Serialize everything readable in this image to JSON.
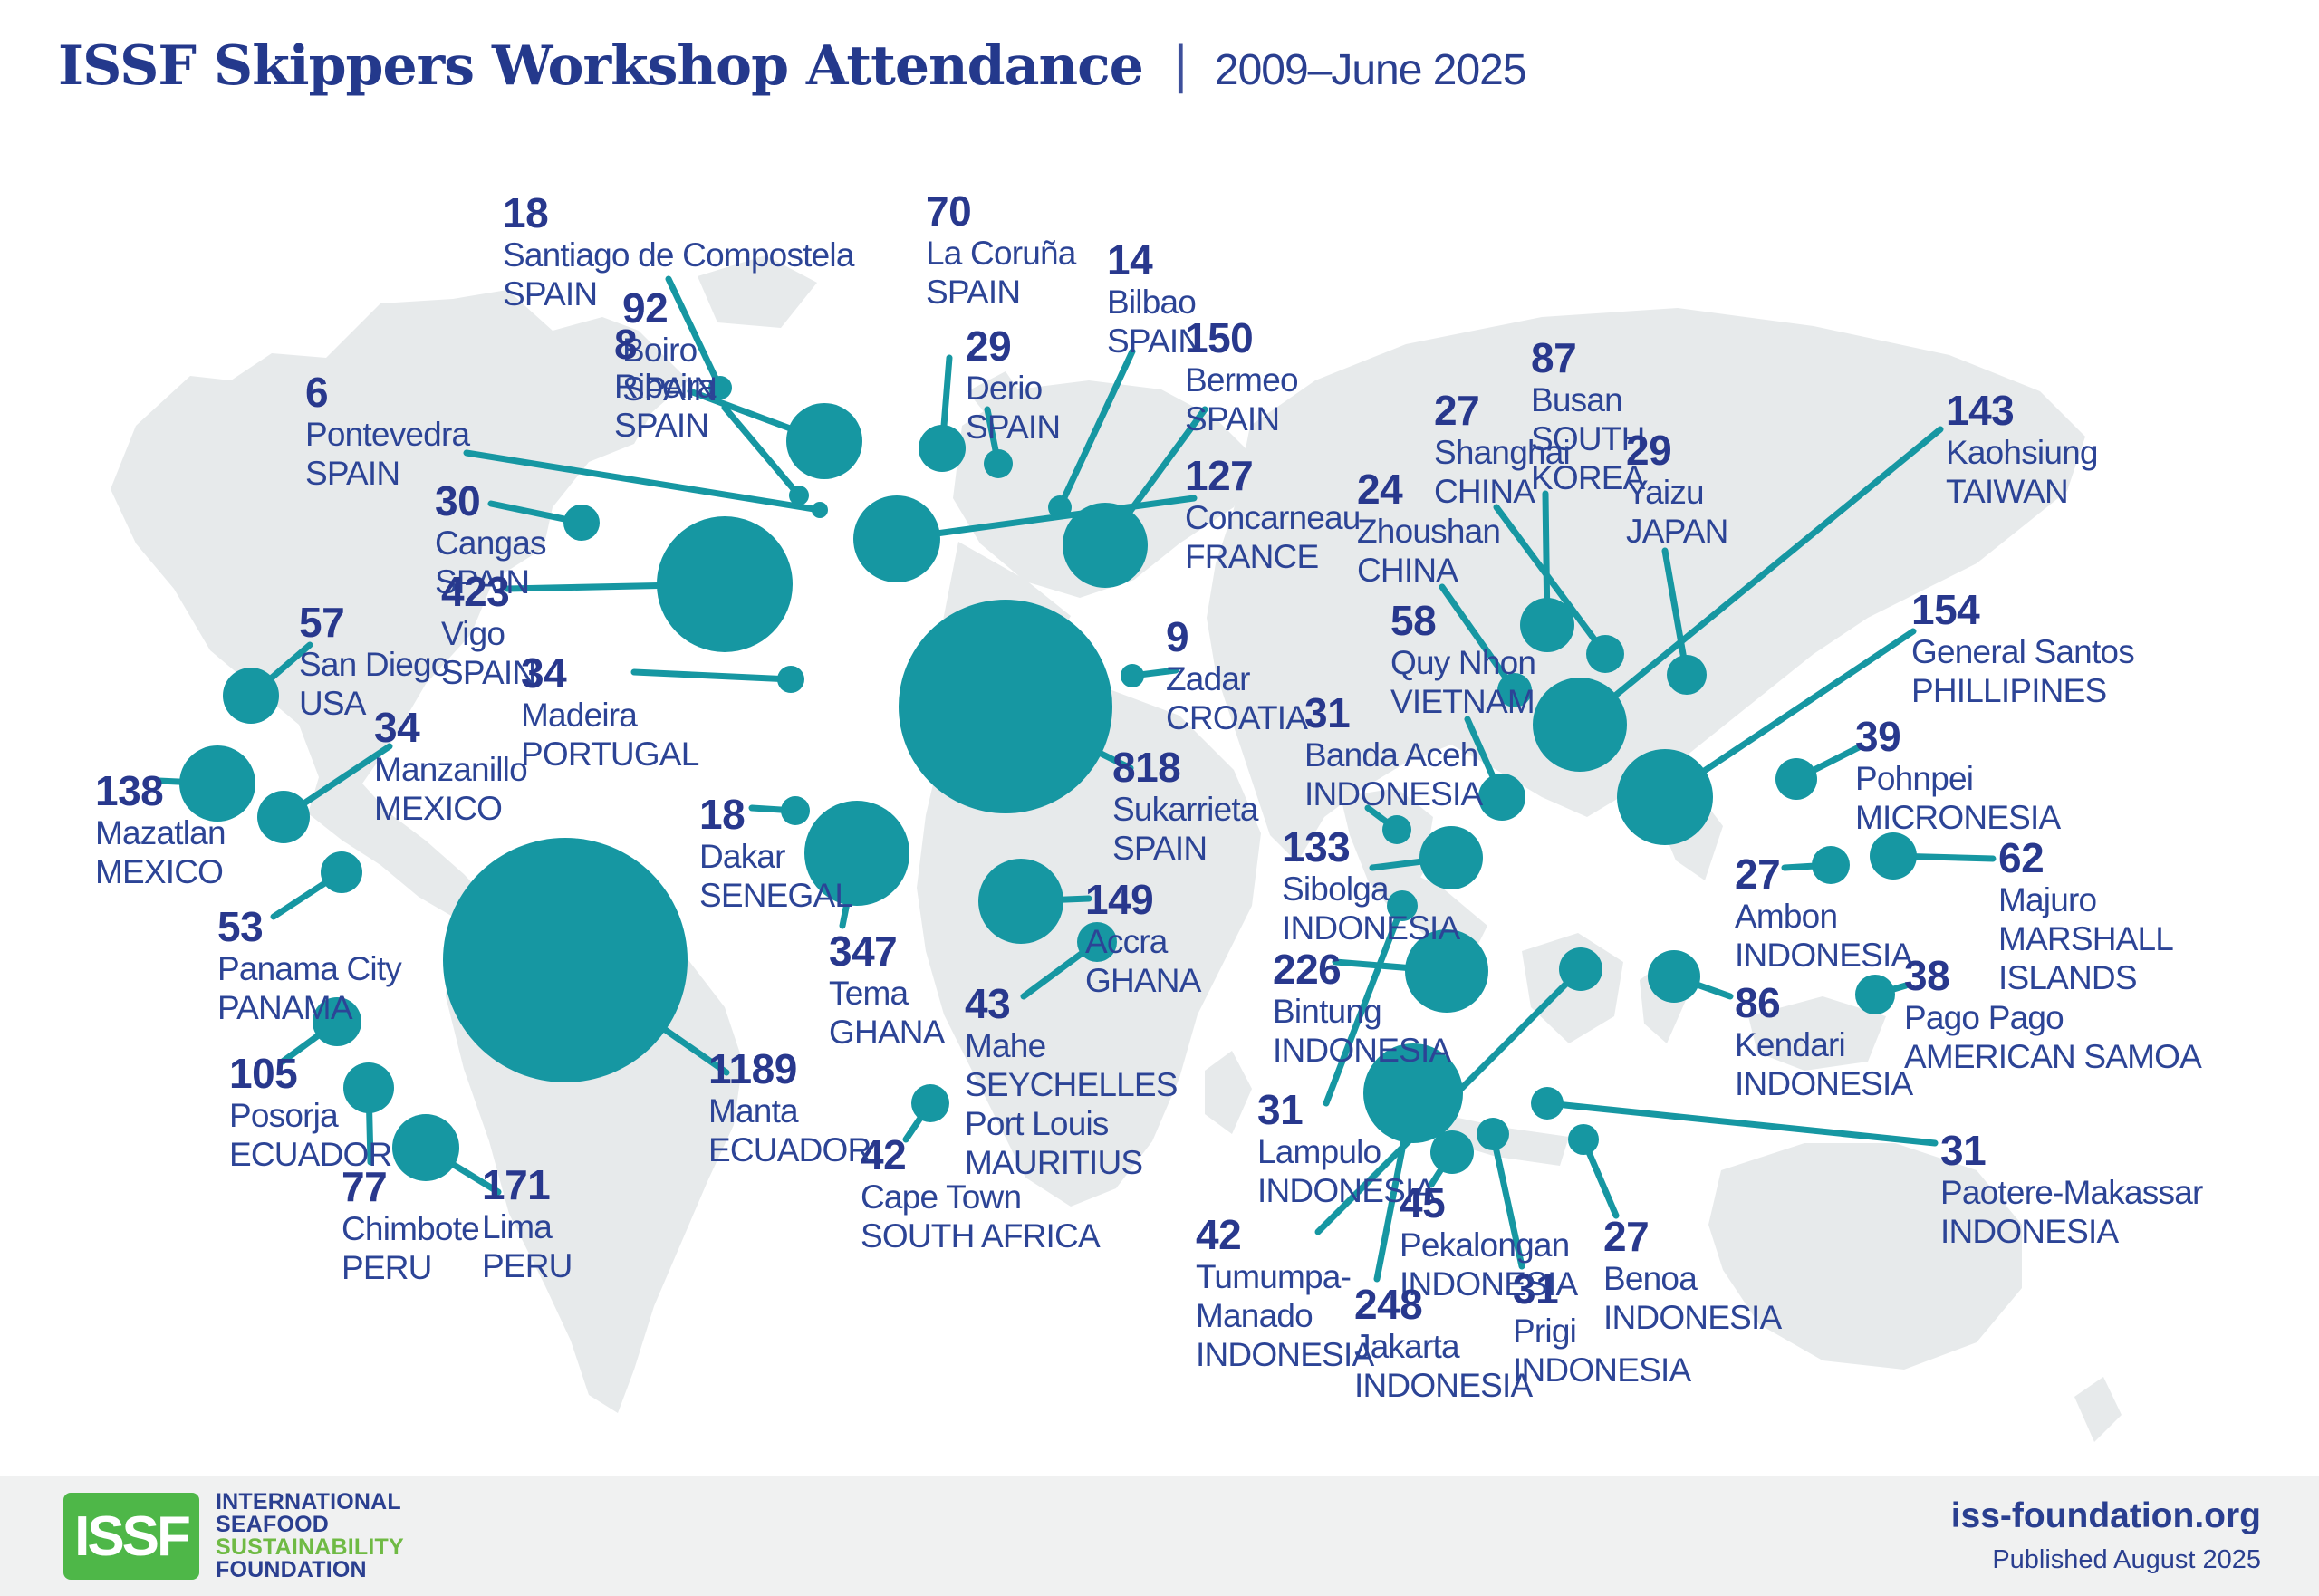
{
  "title": "ISSF Skippers Workshop Attendance",
  "separator": "|",
  "subtitle": "2009–June 2025",
  "footer": {
    "logo_text": "ISSF",
    "logo_lines": [
      "INTERNATIONAL",
      "SEAFOOD",
      "SUSTAINABILITY",
      "FOUNDATION"
    ],
    "website": "iss-foundation.org",
    "published": "Published August 2025"
  },
  "colors": {
    "bubble_teal": "#1697A2",
    "number_navy": "#28388D",
    "name_navy": "#2C4496",
    "land_gray": "#E7EAEB",
    "footer_gray": "#F0F1F1",
    "logo_green": "#4EB748",
    "logo_green_light": "#6FBA44"
  },
  "chart_data": {
    "type": "bubble_map",
    "title": "ISSF Skippers Workshop Attendance",
    "period": "2009–June 2025",
    "legend": "bubble area proportional to attendance",
    "locations": [
      {
        "v": "18",
        "lines": [
          "Santiago de Compostela",
          "SPAIN"
        ],
        "b": [
          795,
          428,
          13
        ],
        "l": [
          555,
          210
        ],
        "e": [
          738,
          308
        ]
      },
      {
        "v": "70",
        "lines": [
          "La Coruña",
          "SPAIN"
        ],
        "b": [
          1040,
          495,
          26
        ],
        "l": [
          1022,
          208
        ],
        "e": [
          1048,
          395
        ]
      },
      {
        "v": "14",
        "lines": [
          "Bilbao",
          "SPAIN"
        ],
        "b": [
          1170,
          560,
          13
        ],
        "l": [
          1222,
          262
        ],
        "e": [
          1250,
          388
        ]
      },
      {
        "v": "92",
        "lines": [
          "Boiro",
          "SPAIN"
        ],
        "b": [
          910,
          487,
          42
        ],
        "l": [
          687,
          315
        ],
        "e": [
          762,
          432
        ]
      },
      {
        "v": "8",
        "lines": [
          "Ribeira",
          "SPAIN"
        ],
        "b": [
          882,
          547,
          11
        ],
        "l": [
          678,
          355
        ],
        "e": [
          800,
          450
        ]
      },
      {
        "v": "6",
        "lines": [
          "Pontevedra",
          "SPAIN"
        ],
        "b": [
          905,
          563,
          9
        ],
        "l": [
          337,
          408
        ],
        "e": [
          515,
          500
        ]
      },
      {
        "v": "30",
        "lines": [
          "Cangas",
          "SPAIN"
        ],
        "b": [
          642,
          577,
          20
        ],
        "l": [
          480,
          528
        ],
        "e": [
          542,
          556
        ]
      },
      {
        "v": "423",
        "lines": [
          "Vigo",
          "SPAIN"
        ],
        "b": [
          800,
          645,
          75
        ],
        "l": [
          487,
          628
        ],
        "e": [
          560,
          650
        ]
      },
      {
        "v": "29",
        "lines": [
          "Derio",
          "SPAIN"
        ],
        "b": [
          1102,
          512,
          16
        ],
        "l": [
          1066,
          357
        ],
        "e": [
          1090,
          452
        ]
      },
      {
        "v": "150",
        "lines": [
          "Bermeo",
          "SPAIN"
        ],
        "b": [
          1220,
          602,
          47
        ],
        "l": [
          1308,
          348
        ],
        "e": [
          1330,
          452
        ]
      },
      {
        "v": "127",
        "lines": [
          "Concarneau",
          "FRANCE"
        ],
        "b": [
          990,
          595,
          48
        ],
        "l": [
          1308,
          500
        ],
        "e": [
          1318,
          550
        ]
      },
      {
        "v": "818",
        "lines": [
          "Sukarrieta",
          "SPAIN"
        ],
        "b": [
          1110,
          780,
          118
        ],
        "l": [
          1228,
          822
        ],
        "e": [
          1248,
          848
        ]
      },
      {
        "v": "9",
        "lines": [
          "Zadar",
          "CROATIA"
        ],
        "b": [
          1250,
          746,
          13
        ],
        "l": [
          1287,
          678
        ],
        "e": [
          1298,
          740
        ]
      },
      {
        "v": "34",
        "lines": [
          "Madeira",
          "PORTUGAL"
        ],
        "b": [
          873,
          750,
          15
        ],
        "l": [
          575,
          718
        ],
        "e": [
          700,
          742
        ]
      },
      {
        "v": "18",
        "lines": [
          "Dakar",
          "SENEGAL"
        ],
        "b": [
          878,
          895,
          16
        ],
        "l": [
          772,
          874
        ],
        "e": [
          830,
          892
        ]
      },
      {
        "v": "347",
        "lines": [
          "Tema",
          "GHANA"
        ],
        "b": [
          946,
          942,
          58
        ],
        "l": [
          915,
          1025
        ],
        "e": [
          930,
          1022
        ]
      },
      {
        "v": "149",
        "lines": [
          "Accra",
          "GHANA"
        ],
        "b": [
          1127,
          995,
          47
        ],
        "l": [
          1198,
          968
        ],
        "e": [
          1202,
          992
        ]
      },
      {
        "v": "43",
        "lines": [
          "Mahe",
          "SEYCHELLES",
          "Port Louis",
          "MAURITIUS"
        ],
        "b": [
          1211,
          1040,
          22
        ],
        "l": [
          1065,
          1083
        ],
        "e": [
          1130,
          1100
        ]
      },
      {
        "v": "42",
        "lines": [
          "Cape Town",
          "SOUTH AFRICA"
        ],
        "b": [
          1027,
          1218,
          21
        ],
        "l": [
          950,
          1250
        ],
        "e": [
          1000,
          1258
        ]
      },
      {
        "v": "57",
        "lines": [
          "San Diego",
          "USA"
        ],
        "b": [
          277,
          768,
          31
        ],
        "l": [
          330,
          662
        ],
        "e": [
          342,
          712
        ]
      },
      {
        "v": "138",
        "lines": [
          "Mazatlan",
          "MEXICO"
        ],
        "b": [
          240,
          865,
          42
        ],
        "l": [
          105,
          848
        ],
        "e": [
          175,
          862
        ]
      },
      {
        "v": "34",
        "lines": [
          "Manzanillo",
          "MEXICO"
        ],
        "b": [
          313,
          902,
          29
        ],
        "l": [
          413,
          778
        ],
        "e": [
          430,
          824
        ]
      },
      {
        "v": "53",
        "lines": [
          "Panama City",
          "PANAMA"
        ],
        "b": [
          377,
          963,
          23
        ],
        "l": [
          240,
          998
        ],
        "e": [
          302,
          1012
        ]
      },
      {
        "v": "105",
        "lines": [
          "Posorja",
          "ECUADOR"
        ],
        "b": [
          372,
          1128,
          27
        ],
        "l": [
          253,
          1160
        ],
        "e": [
          312,
          1172
        ]
      },
      {
        "v": "1189",
        "lines": [
          "Manta",
          "ECUADOR"
        ],
        "b": [
          624,
          1060,
          135
        ],
        "l": [
          782,
          1155
        ],
        "e": [
          802,
          1184
        ]
      },
      {
        "v": "77",
        "lines": [
          "Chimbote",
          "PERU"
        ],
        "b": [
          407,
          1201,
          28
        ],
        "l": [
          377,
          1285
        ],
        "e": [
          409,
          1283
        ]
      },
      {
        "v": "171",
        "lines": [
          "Lima",
          "PERU"
        ],
        "b": [
          470,
          1267,
          37
        ],
        "l": [
          532,
          1283
        ],
        "e": [
          550,
          1316
        ]
      },
      {
        "v": "27",
        "lines": [
          "Shanghai",
          "CHINA"
        ],
        "b": [
          1772,
          722,
          21
        ],
        "l": [
          1583,
          428
        ],
        "e": [
          1652,
          560
        ]
      },
      {
        "v": "24",
        "lines": [
          "Zhoushan",
          "CHINA"
        ],
        "b": [
          1672,
          762,
          19
        ],
        "l": [
          1498,
          515
        ],
        "e": [
          1592,
          648
        ]
      },
      {
        "v": "87",
        "lines": [
          "Busan",
          "SOUTH",
          "KOREA"
        ],
        "b": [
          1708,
          690,
          30
        ],
        "l": [
          1690,
          370
        ],
        "e": [
          1706,
          545
        ]
      },
      {
        "v": "29",
        "lines": [
          "Yaizu",
          "JAPAN"
        ],
        "b": [
          1862,
          745,
          22
        ],
        "l": [
          1795,
          472
        ],
        "e": [
          1838,
          608
        ]
      },
      {
        "v": "143",
        "lines": [
          "Kaohsiung",
          "TAIWAN"
        ],
        "b": [
          1744,
          800,
          52
        ],
        "l": [
          2148,
          428
        ],
        "e": [
          2142,
          474
        ]
      },
      {
        "v": "58",
        "lines": [
          "Quy Nhon",
          "VIETNAM"
        ],
        "b": [
          1658,
          880,
          26
        ],
        "l": [
          1535,
          660
        ],
        "e": [
          1620,
          794
        ]
      },
      {
        "v": "31",
        "lines": [
          "Banda Aceh",
          "INDONESIA"
        ],
        "b": [
          1542,
          916,
          16
        ],
        "l": [
          1440,
          762
        ],
        "e": [
          1510,
          892
        ]
      },
      {
        "v": "133",
        "lines": [
          "Sibolga",
          "INDONESIA"
        ],
        "b": [
          1602,
          947,
          35
        ],
        "l": [
          1415,
          910
        ],
        "e": [
          1515,
          958
        ]
      },
      {
        "v": "226",
        "lines": [
          "Bintung",
          "INDONESIA"
        ],
        "b": [
          1597,
          1072,
          46
        ],
        "l": [
          1405,
          1045
        ],
        "e": [
          1474,
          1062
        ]
      },
      {
        "v": "31",
        "lines": [
          "Lampulo",
          "INDONESIA"
        ],
        "b": [
          1548,
          1000,
          17
        ],
        "l": [
          1388,
          1200
        ],
        "e": [
          1464,
          1218
        ]
      },
      {
        "v": "154",
        "lines": [
          "General Santos",
          "PHILLIPINES"
        ],
        "b": [
          1838,
          880,
          53
        ],
        "l": [
          2110,
          648
        ],
        "e": [
          2112,
          697
        ]
      },
      {
        "v": "39",
        "lines": [
          "Pohnpei",
          "MICRONESIA"
        ],
        "b": [
          1983,
          860,
          23
        ],
        "l": [
          2048,
          788
        ],
        "e": [
          2054,
          824
        ]
      },
      {
        "v": "27",
        "lines": [
          "Ambon",
          "INDONESIA"
        ],
        "b": [
          2021,
          955,
          21
        ],
        "l": [
          1915,
          940
        ],
        "e": [
          1970,
          958
        ]
      },
      {
        "v": "62",
        "lines": [
          "Majuro",
          "MARSHALL",
          "ISLANDS"
        ],
        "b": [
          2090,
          945,
          26
        ],
        "l": [
          2206,
          922
        ],
        "e": [
          2200,
          948
        ]
      },
      {
        "v": "86",
        "lines": [
          "Kendari",
          "INDONESIA"
        ],
        "b": [
          1848,
          1078,
          29
        ],
        "l": [
          1915,
          1082
        ],
        "e": [
          1910,
          1100
        ]
      },
      {
        "v": "38",
        "lines": [
          "Pago Pago",
          "AMERICAN SAMOA"
        ],
        "b": [
          2070,
          1098,
          22
        ],
        "l": [
          2102,
          1052
        ],
        "e": [
          2104,
          1088
        ]
      },
      {
        "v": "31",
        "lines": [
          "Paotere-Makassar",
          "INDONESIA"
        ],
        "b": [
          1708,
          1218,
          18
        ],
        "l": [
          2142,
          1245
        ],
        "e": [
          2136,
          1262
        ]
      },
      {
        "v": "27",
        "lines": [
          "Benoa",
          "INDONESIA"
        ],
        "b": [
          1748,
          1258,
          17
        ],
        "l": [
          1770,
          1340
        ],
        "e": [
          1784,
          1342
        ]
      },
      {
        "v": "31",
        "lines": [
          "Prigi",
          "INDONESIA"
        ],
        "b": [
          1648,
          1252,
          18
        ],
        "l": [
          1670,
          1398
        ],
        "e": [
          1680,
          1398
        ]
      },
      {
        "v": "45",
        "lines": [
          "Pekalongan",
          "INDONESIA"
        ],
        "b": [
          1603,
          1272,
          24
        ],
        "l": [
          1545,
          1303
        ],
        "e": [
          1580,
          1308
        ]
      },
      {
        "v": "248",
        "lines": [
          "Jakarta",
          "INDONESIA"
        ],
        "b": [
          1560,
          1207,
          55
        ],
        "l": [
          1495,
          1415
        ],
        "e": [
          1520,
          1412
        ]
      },
      {
        "v": "42",
        "lines": [
          "Tumumpa-",
          "Manado",
          "INDONESIA"
        ],
        "b": [
          1745,
          1070,
          24
        ],
        "l": [
          1320,
          1338
        ],
        "e": [
          1455,
          1360
        ]
      }
    ]
  }
}
